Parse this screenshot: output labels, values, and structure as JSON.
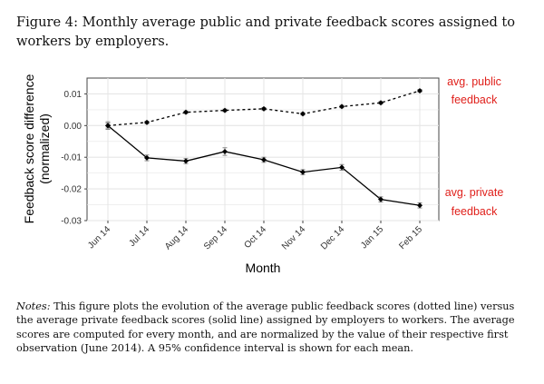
{
  "figure": {
    "caption": "Figure 4:  Monthly average public and private feedback scores assigned to workers by employers.",
    "notes_label": "Notes:",
    "notes_text": "This figure plots the evolution of the average public feedback scores (dotted line) versus the average private feedback scores (solid line) assigned by employers to workers. The average scores are computed for every month, and are normalized by the value of their respective first observation (June 2014). A 95% confidence interval is shown for each mean."
  },
  "chart_data": {
    "type": "line",
    "title": "",
    "xlabel": "Month",
    "ylabel": "Feedback score difference (normalized)",
    "ylabel_lines": [
      "Feedback score difference",
      "(normalized)"
    ],
    "categories": [
      "Jun 14",
      "Jul 14",
      "Aug 14",
      "Sep 14",
      "Oct 14",
      "Nov 14",
      "Dec 14",
      "Jan 15",
      "Feb 15"
    ],
    "ylim": [
      -0.03,
      0.015
    ],
    "yticks": [
      0.01,
      0.0,
      -0.01,
      -0.02,
      -0.03
    ],
    "ytick_labels": [
      "0.01",
      "0.00",
      "-0.01",
      "-0.02",
      "-0.03"
    ],
    "grid": true,
    "series": [
      {
        "name": "avg. public feedback",
        "label_lines": [
          "avg. public",
          "feedback"
        ],
        "style": "dotted",
        "values": [
          0.0,
          0.001,
          0.0042,
          0.0048,
          0.0053,
          0.0037,
          0.006,
          0.0072,
          0.011
        ],
        "ci_halfwidth": [
          0.0008,
          0.0004,
          0.0004,
          0.0004,
          0.0004,
          0.0004,
          0.0004,
          0.0004,
          0.0004
        ]
      },
      {
        "name": "avg. private feedback",
        "label_lines": [
          "avg. private",
          "feedback"
        ],
        "style": "solid",
        "values": [
          0.0,
          -0.0102,
          -0.0112,
          -0.0082,
          -0.0108,
          -0.0147,
          -0.0132,
          -0.0233,
          -0.0252
        ],
        "ci_halfwidth": [
          0.0012,
          0.0009,
          0.0008,
          0.0012,
          0.0008,
          0.0008,
          0.0009,
          0.0008,
          0.0008
        ]
      }
    ],
    "colors": {
      "line": "#000000",
      "annotation": "#e0201b",
      "grid": "#e6e6e6",
      "border": "#444444"
    }
  }
}
